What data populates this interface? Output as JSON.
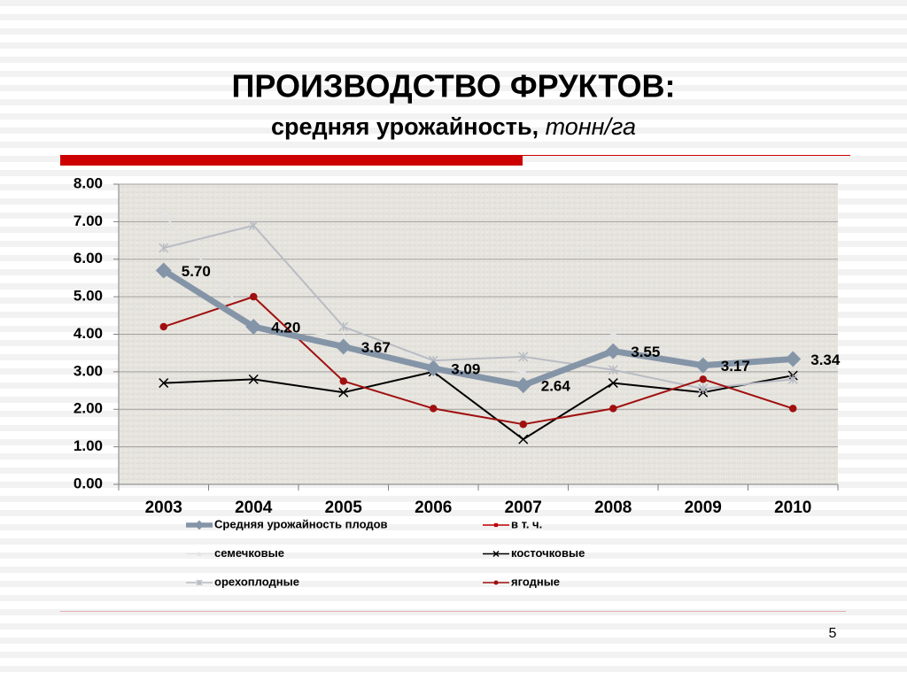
{
  "chart_data": {
    "type": "line",
    "title": "ПРОИЗВОДСТВО ФРУКТОВ:",
    "subtitle": "средняя урожайность,",
    "subtitle_unit": "тонн/га",
    "categories": [
      "2003",
      "2004",
      "2005",
      "2006",
      "2007",
      "2008",
      "2009",
      "2010"
    ],
    "ylim": [
      0,
      8
    ],
    "yticks": [
      {
        "value": 0,
        "label": "0.00"
      },
      {
        "value": 1,
        "label": "1.00"
      },
      {
        "value": 2,
        "label": "2.00"
      },
      {
        "value": 3,
        "label": "3.00"
      },
      {
        "value": 4,
        "label": "4.00"
      },
      {
        "value": 5,
        "label": "5.00"
      },
      {
        "value": 6,
        "label": "6.00"
      },
      {
        "value": 7,
        "label": "7.00"
      },
      {
        "value": 8,
        "label": "8.00"
      }
    ],
    "grid": true,
    "legend": "bottom",
    "series": [
      {
        "name": "Средняя урожайность плодов",
        "color": "#8595a8",
        "marker": "diamond",
        "values": [
          5.7,
          4.2,
          3.67,
          3.09,
          2.64,
          3.55,
          3.17,
          3.34
        ],
        "value_labels": [
          "5.70",
          "4.20",
          "3.67",
          "3.09",
          "2.64",
          "3.55",
          "3.17",
          "3.34"
        ]
      },
      {
        "name": "в т. ч.",
        "color": "#c00000",
        "marker": "square",
        "values": [
          null,
          null,
          null,
          null,
          null,
          null,
          null,
          null
        ]
      },
      {
        "name": "семечковые",
        "color": "#e4e4e4",
        "marker": "triangle",
        "values": [
          7.2,
          4.3,
          3.9,
          3.3,
          3.0,
          4.0,
          3.2,
          3.4
        ]
      },
      {
        "name": "косточковые",
        "color": "#000000",
        "marker": "x",
        "values": [
          2.7,
          2.8,
          2.45,
          3.0,
          1.2,
          2.7,
          2.45,
          2.9
        ]
      },
      {
        "name": "орехоплодные",
        "color": "#b8bcc4",
        "marker": "asterisk",
        "values": [
          6.3,
          6.9,
          4.2,
          3.3,
          3.4,
          3.05,
          2.55,
          2.8
        ]
      },
      {
        "name": "ягодные",
        "color": "#a01010",
        "marker": "circle",
        "values": [
          4.2,
          5.0,
          2.75,
          2.02,
          1.6,
          2.02,
          2.8,
          2.02
        ]
      }
    ],
    "page_number": 5
  }
}
